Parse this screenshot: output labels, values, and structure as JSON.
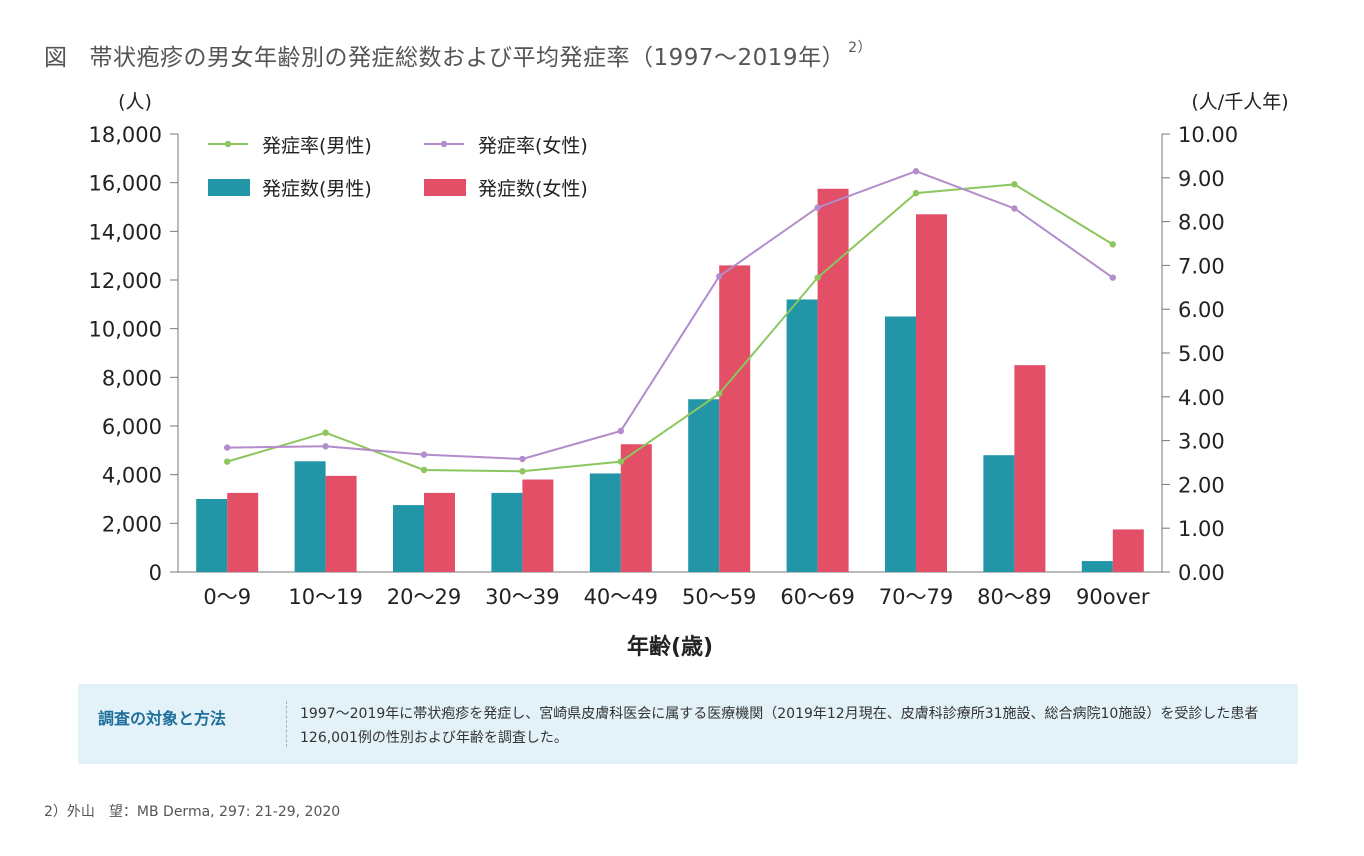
{
  "figure": {
    "label": "図",
    "title": "帯状疱疹の男女年齢別の発症総数および平均発症率（1997〜2019年）",
    "ref": "2）"
  },
  "chart_data": {
    "type": "bar",
    "categories": [
      "0〜9",
      "10〜19",
      "20〜29",
      "30〜39",
      "40〜49",
      "50〜59",
      "60〜69",
      "70〜79",
      "80〜89",
      "90over"
    ],
    "xlabel": "年齢(歳)",
    "y_left_unit": "(人)",
    "y_right_unit": "(人/千人年)",
    "ylim_left": [
      0,
      18000
    ],
    "ylim_right": [
      0,
      10
    ],
    "y_left_ticks": [
      "0",
      "2,000",
      "4,000",
      "6,000",
      "8,000",
      "10,000",
      "12,000",
      "14,000",
      "16,000",
      "18,000"
    ],
    "y_right_ticks": [
      "0.00",
      "1.00",
      "2.00",
      "3.00",
      "4.00",
      "5.00",
      "6.00",
      "7.00",
      "8.00",
      "9.00",
      "10.00"
    ],
    "grid": false,
    "legend_position": "top-left",
    "bar_series": [
      {
        "name": "発症数(男性)",
        "color": "#2296a6",
        "values": [
          3000,
          4550,
          2750,
          3250,
          4050,
          7100,
          11200,
          10500,
          4800,
          450
        ]
      },
      {
        "name": "発症数(女性)",
        "color": "#e24f67",
        "values": [
          3250,
          3950,
          3250,
          3800,
          5250,
          12600,
          15750,
          14700,
          8500,
          1750
        ]
      }
    ],
    "line_series": [
      {
        "name": "発症率(男性)",
        "color": "#8cc65e",
        "values": [
          2.52,
          3.18,
          2.33,
          2.3,
          2.52,
          4.07,
          6.72,
          8.65,
          8.85,
          7.48
        ]
      },
      {
        "name": "発症率(女性)",
        "color": "#b28ccb",
        "values": [
          2.84,
          2.87,
          2.68,
          2.58,
          3.22,
          6.75,
          8.32,
          9.15,
          8.3,
          6.72
        ]
      }
    ]
  },
  "info": {
    "heading": "調査の対象と方法",
    "text": "1997〜2019年に帯状疱疹を発症し、宮崎県皮膚科医会に属する医療機関（2019年12月現在、皮膚科診療所31施設、総合病院10施設）を受診した患者126,001例の性別および年齢を調査した。"
  },
  "footnote": "2）外山　望：MB Derma, 297: 21-29, 2020"
}
